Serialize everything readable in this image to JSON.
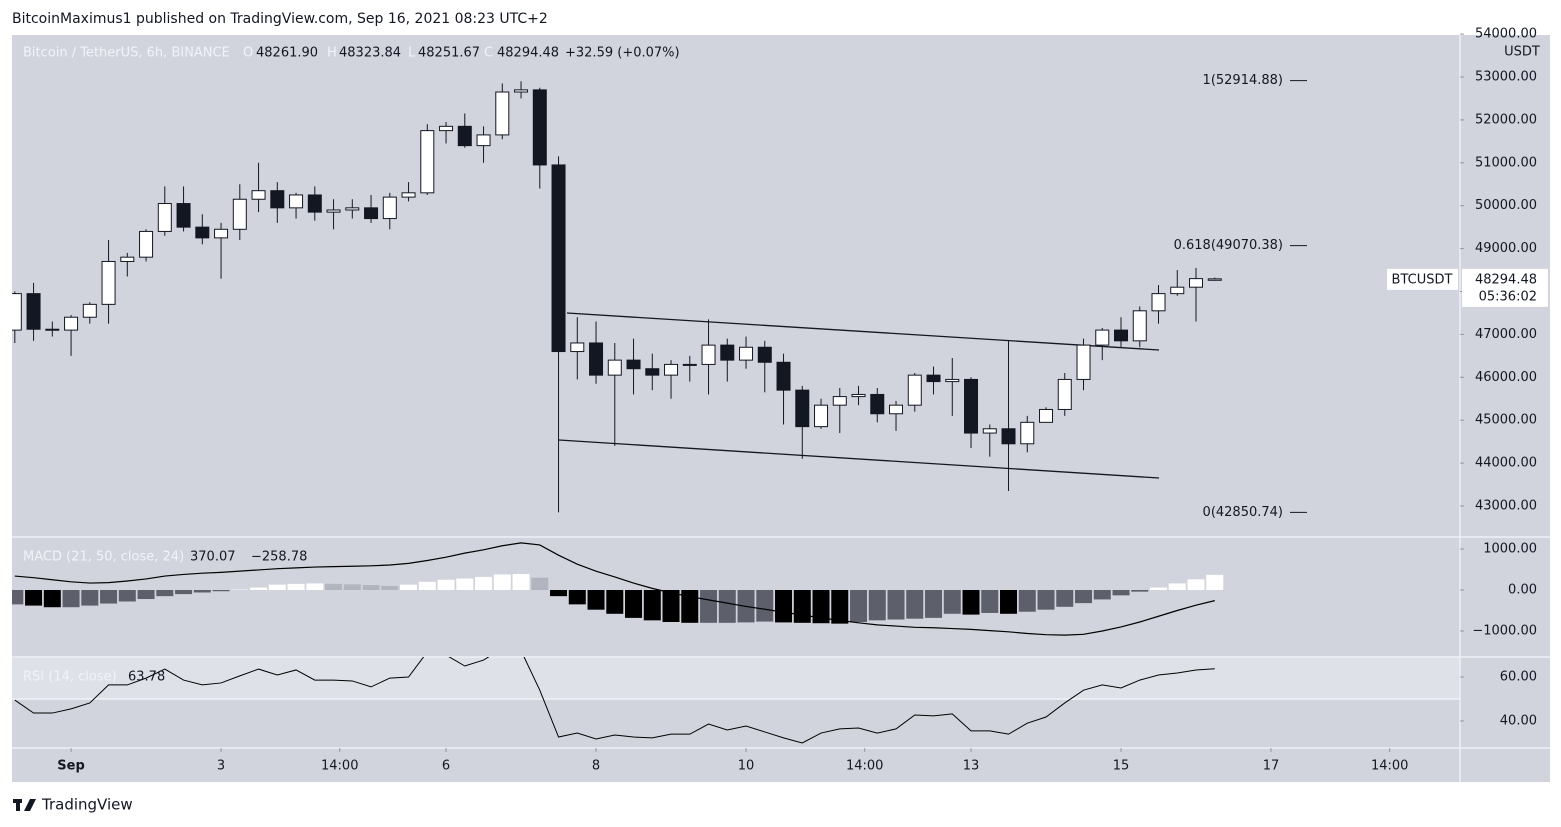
{
  "header": {
    "published": "BitcoinMaximus1 published on TradingView.com, Sep 16, 2021 08:23 UTC+2",
    "footer": "TradingView"
  },
  "chart_data": [
    {
      "type": "candlestick",
      "title": "Bitcoin / TetherUS, 6h, BINANCE",
      "legend_labels": [
        "O",
        "H",
        "L",
        "C"
      ],
      "legend_values": [
        "48261.90",
        "48323.84",
        "48251.67",
        "48294.48"
      ],
      "change": "+32.59 (+0.07%)",
      "unit": "USDT",
      "symbol_tag": "BTCUSDT",
      "last_price": "48294.48",
      "countdown": "05:36:02",
      "up_color": "#ffffff",
      "down_color": "#131722",
      "grid": false,
      "x": [
        -3,
        -2,
        -1,
        0,
        1,
        2,
        3,
        4,
        5,
        6,
        7,
        8,
        9,
        10,
        11,
        12,
        13,
        14,
        15,
        16,
        17,
        18,
        19,
        20,
        21,
        22,
        23,
        24,
        25,
        26,
        27,
        28,
        29,
        30,
        31,
        32,
        33,
        34,
        35,
        36,
        37,
        38,
        39,
        40,
        41,
        42,
        43,
        44,
        45,
        46,
        47,
        48,
        49,
        50,
        51,
        52,
        53,
        54,
        55,
        56,
        57,
        58,
        59,
        60,
        61
      ],
      "open": [
        47100,
        47950,
        47120,
        47100,
        47400,
        47700,
        48700,
        48800,
        49400,
        50050,
        49500,
        49250,
        49450,
        50150,
        50350,
        49950,
        50250,
        49850,
        49900,
        49950,
        49700,
        50200,
        50300,
        51750,
        51850,
        51400,
        51650,
        52650,
        52700,
        50950,
        46600,
        46800,
        46050,
        46400,
        46200,
        46050,
        46300,
        46300,
        46750,
        46400,
        46700,
        46350,
        45700,
        44850,
        45350,
        45550,
        45600,
        45150,
        45350,
        46050,
        45900,
        45950,
        44700,
        44800,
        44450,
        44950,
        45250,
        45950,
        46750,
        47100,
        46850,
        47550,
        47950,
        48100,
        48261.9
      ],
      "high": [
        48000,
        48200,
        47300,
        47450,
        47750,
        49200,
        48900,
        49450,
        50450,
        50450,
        49800,
        49600,
        50500,
        51000,
        50550,
        50300,
        50450,
        50150,
        50150,
        50250,
        50300,
        50550,
        51900,
        51950,
        52150,
        51850,
        52850,
        52900,
        52750,
        51150,
        47400,
        47300,
        46800,
        46900,
        46550,
        46400,
        46500,
        47350,
        46900,
        46950,
        46850,
        46550,
        45800,
        45500,
        45750,
        45800,
        45750,
        45450,
        46100,
        46250,
        46450,
        46000,
        44900,
        46850,
        45100,
        45300,
        46100,
        46900,
        47150,
        47400,
        47650,
        48150,
        48500,
        48550,
        48323.84
      ],
      "low": [
        46800,
        46850,
        46950,
        46500,
        47250,
        47250,
        48350,
        48700,
        49300,
        49400,
        49100,
        48300,
        49200,
        49850,
        49600,
        49700,
        49650,
        49450,
        49700,
        49600,
        49450,
        50100,
        50250,
        51450,
        51350,
        51000,
        51550,
        52500,
        50400,
        42850,
        45950,
        45850,
        44400,
        45600,
        45700,
        45500,
        45900,
        45600,
        45900,
        46200,
        45650,
        44900,
        44100,
        44800,
        44700,
        45350,
        44950,
        44750,
        45200,
        45600,
        45100,
        44350,
        44150,
        43350,
        44250,
        44950,
        45100,
        45700,
        46400,
        46700,
        46700,
        47250,
        47900,
        47300,
        48251.67
      ],
      "close": [
        47950,
        47120,
        47100,
        47400,
        47700,
        48700,
        48800,
        49400,
        50050,
        49500,
        49250,
        49450,
        50150,
        50350,
        49950,
        50250,
        49850,
        49900,
        49950,
        49700,
        50200,
        50300,
        51750,
        51850,
        51400,
        51650,
        52650,
        52700,
        50950,
        46600,
        46800,
        46050,
        46400,
        46200,
        46050,
        46300,
        46300,
        46750,
        46400,
        46700,
        46350,
        45700,
        44850,
        45350,
        45550,
        45600,
        45150,
        45350,
        46050,
        45900,
        45950,
        44700,
        44800,
        44450,
        44950,
        45250,
        45950,
        46750,
        47100,
        46850,
        47550,
        47950,
        48100,
        48300,
        48294.48
      ],
      "xlim": [
        -3.15,
        74.08
      ],
      "xticks": [
        {
          "value": 0,
          "label": "Sep"
        },
        {
          "value": 8,
          "label": "3"
        },
        {
          "value": 14.33,
          "label": "14:00"
        },
        {
          "value": 20,
          "label": "6"
        },
        {
          "value": 28,
          "label": "8"
        },
        {
          "value": 36,
          "label": "10"
        },
        {
          "value": 42.33,
          "label": "14:00"
        },
        {
          "value": 48,
          "label": "13"
        },
        {
          "value": 56,
          "label": "15"
        },
        {
          "value": 64,
          "label": "17"
        },
        {
          "value": 70.33,
          "label": "14:00"
        }
      ],
      "ylim": [
        42277,
        53979
      ],
      "yticks": [
        {
          "value": 43000,
          "label": "43000.00"
        },
        {
          "value": 44000,
          "label": "44000.00"
        },
        {
          "value": 45000,
          "label": "45000.00"
        },
        {
          "value": 46000,
          "label": "46000.00"
        },
        {
          "value": 47000,
          "label": "47000.00"
        },
        {
          "value": 48000,
          "label": "48000.00"
        },
        {
          "value": 49000,
          "label": "49000.00"
        },
        {
          "value": 50000,
          "label": "50000.00"
        },
        {
          "value": 51000,
          "label": "51000.00"
        },
        {
          "value": 52000,
          "label": "52000.00"
        },
        {
          "value": 53000,
          "label": "53000.00"
        },
        {
          "value": 54000,
          "label": "54000.00"
        }
      ],
      "fib_levels": [
        {
          "value": 52914.88,
          "label": "1(52914.88)"
        },
        {
          "value": 49070.38,
          "label": "0.618(49070.38)"
        },
        {
          "value": 42850.74,
          "label": "0(42850.74)"
        }
      ]
    },
    {
      "type": "macd",
      "title": "MACD (21, 50, close, 24)",
      "legend_values": [
        "370.07",
        "−258.78"
      ],
      "histogram": [
        -350,
        -380,
        -420,
        -420,
        -380,
        -330,
        -280,
        -220,
        -150,
        -100,
        -60,
        -30,
        10,
        60,
        130,
        150,
        160,
        150,
        140,
        120,
        100,
        130,
        200,
        250,
        280,
        320,
        380,
        390,
        300,
        -150,
        -350,
        -480,
        -580,
        -680,
        -740,
        -780,
        -800,
        -800,
        -800,
        -790,
        -770,
        -790,
        -800,
        -810,
        -820,
        -780,
        -740,
        -720,
        -700,
        -680,
        -580,
        -600,
        -560,
        -580,
        -530,
        -480,
        -410,
        -320,
        -230,
        -130,
        -40,
        60,
        160,
        260,
        370.07
      ],
      "macd": [
        340,
        300,
        250,
        200,
        170,
        180,
        220,
        270,
        340,
        380,
        410,
        430,
        460,
        490,
        520,
        540,
        560,
        570,
        580,
        590,
        610,
        650,
        720,
        800,
        900,
        980,
        1080,
        1150,
        1100,
        850,
        630,
        460,
        320,
        170,
        40,
        -70,
        -160,
        -240,
        -320,
        -400,
        -470,
        -540,
        -610,
        -680,
        -740,
        -800,
        -850,
        -880,
        -910,
        -920,
        -940,
        -960,
        -990,
        -1020,
        -1060,
        -1090,
        -1100,
        -1080,
        -1000,
        -900,
        -780,
        -640,
        -500,
        -370,
        -258.78
      ],
      "colors": {
        "up_rising": "#ffffff",
        "up_falling": "#b2b5be",
        "down_falling": "#000000",
        "down_rising": "#5d606b",
        "line": "#000000"
      },
      "ylim": [
        -1634,
        1293
      ],
      "yticks": [
        {
          "value": 1000,
          "label": "1000.00"
        },
        {
          "value": 0,
          "label": "0.00"
        },
        {
          "value": -1000,
          "label": "−1000.00"
        }
      ]
    },
    {
      "type": "line",
      "title": "RSI (14, close)",
      "legend_value": "63.78",
      "color": "#000000",
      "band": 50,
      "values": [
        49.5,
        43.6,
        43.6,
        45.5,
        48.2,
        56.4,
        56.4,
        59.5,
        63.6,
        58.6,
        56.4,
        57.3,
        60.5,
        63.6,
        60.9,
        63.2,
        58.6,
        58.6,
        58.2,
        55.5,
        59.5,
        60,
        71.4,
        70,
        65,
        67.7,
        73,
        72,
        54,
        32.7,
        34.5,
        31.8,
        33.6,
        32.7,
        32.3,
        34,
        34,
        38.6,
        35.9,
        37.7,
        35,
        32.3,
        30,
        34.5,
        36.4,
        36.8,
        34.5,
        36.4,
        42.7,
        42.3,
        43.2,
        35.5,
        35.5,
        34,
        39,
        41.8,
        48.2,
        54,
        56.4,
        55,
        58.6,
        60.9,
        61.8,
        63.2,
        63.78
      ],
      "ylim": [
        27.7,
        69.1
      ],
      "yticks": [
        {
          "value": 60,
          "label": "60.00"
        },
        {
          "value": 40,
          "label": "40.00"
        }
      ]
    }
  ]
}
